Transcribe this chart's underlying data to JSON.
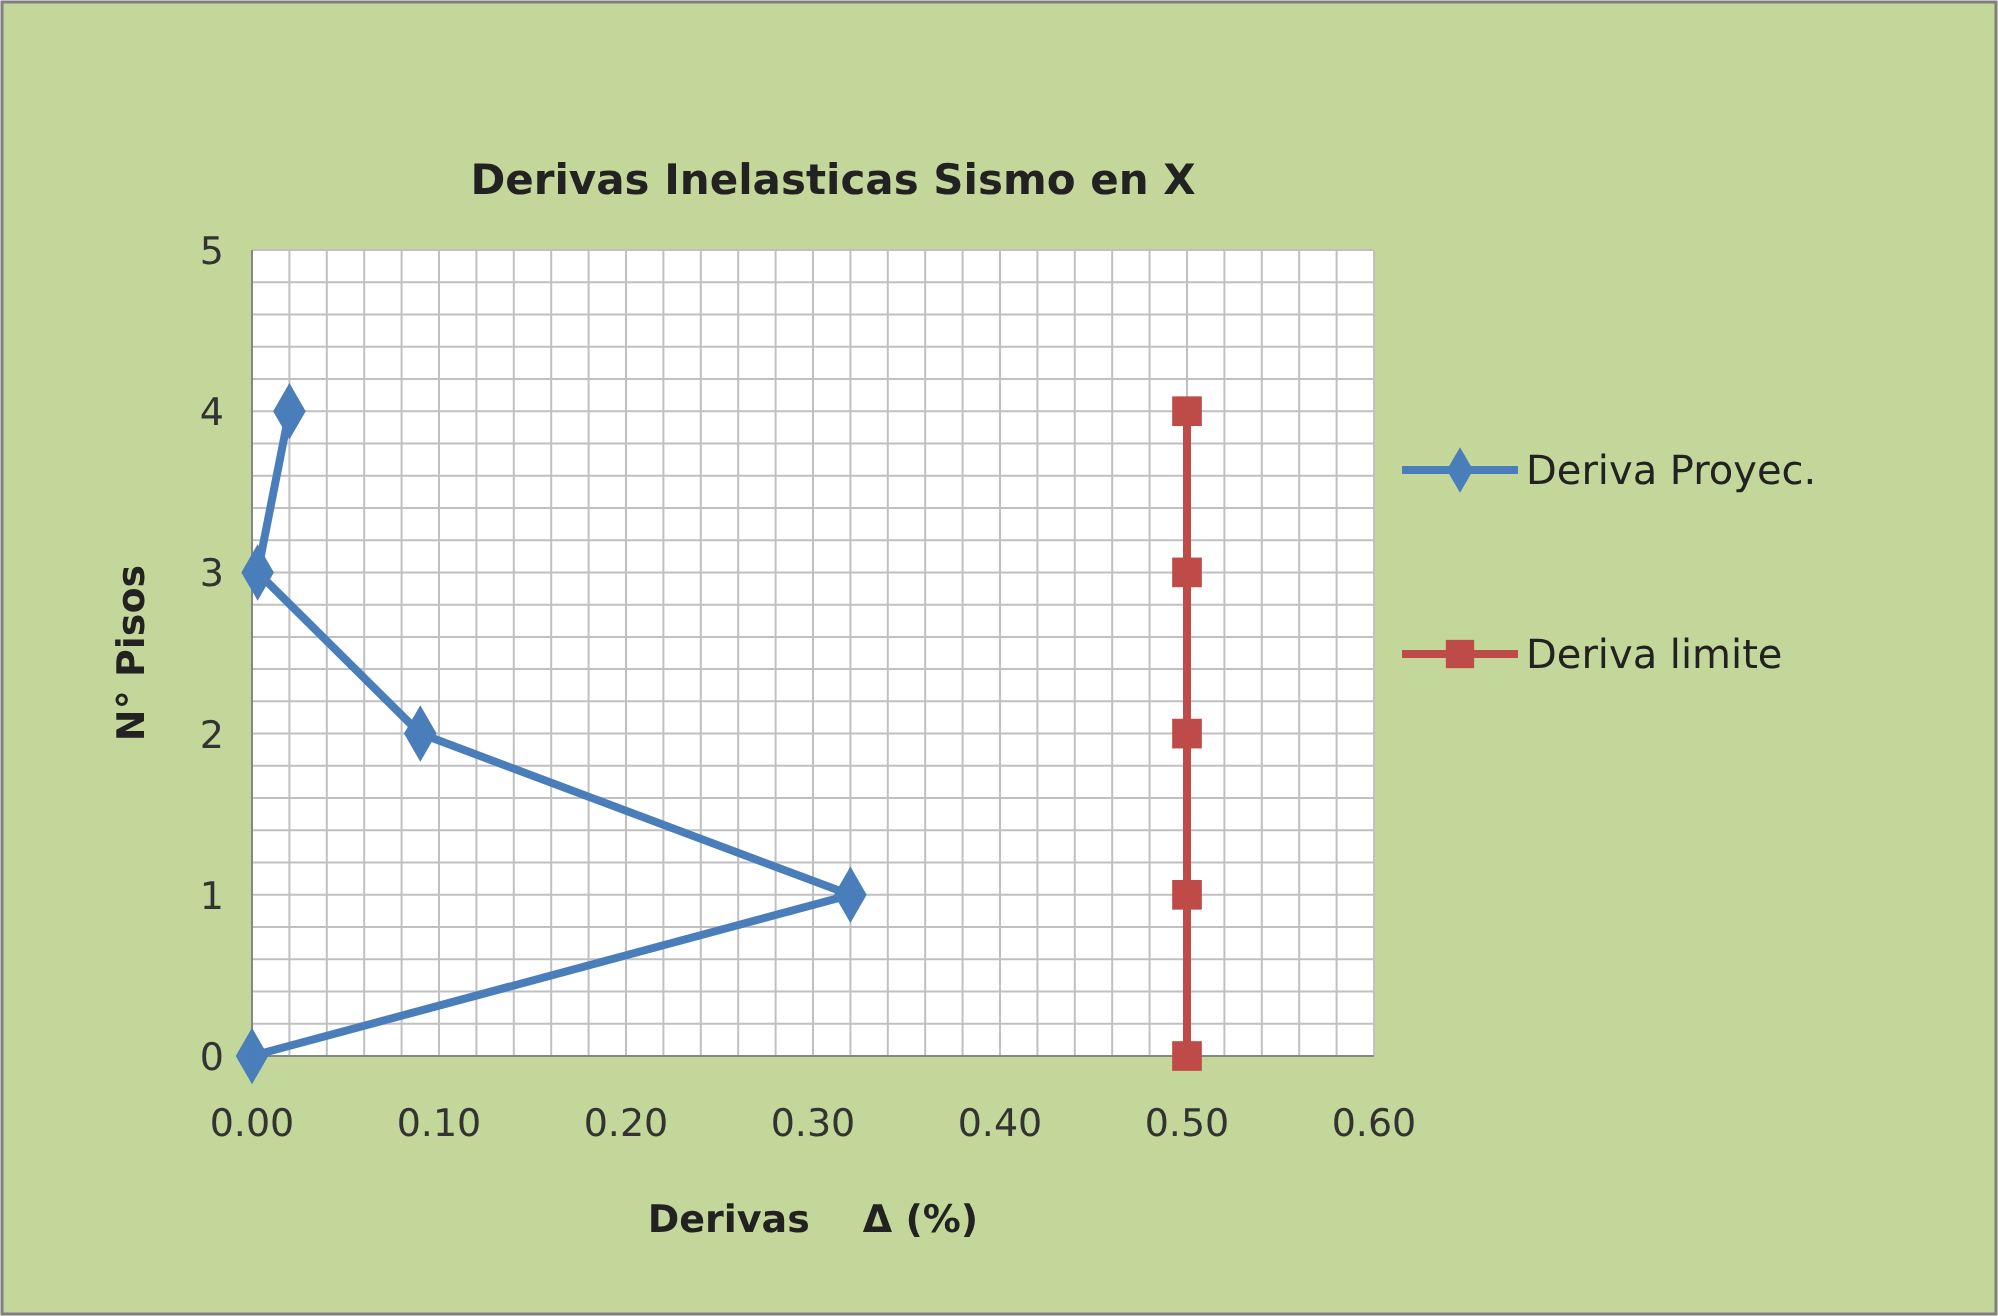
{
  "chart_data": {
    "type": "line",
    "title": "Derivas Inelasticas Sismo en X",
    "xlabel": "Derivas    Δ (%)",
    "ylabel": "N° Pisos",
    "xlim": [
      0,
      0.6
    ],
    "ylim": [
      0,
      5
    ],
    "xticks": [
      {
        "value": 0,
        "label": "0.00"
      },
      {
        "value": 0.02,
        "label": null
      },
      {
        "value": 0.04,
        "label": null
      },
      {
        "value": 0.06,
        "label": null
      },
      {
        "value": 0.08,
        "label": null
      },
      {
        "value": 0.1,
        "label": "0.10"
      },
      {
        "value": 0.12,
        "label": null
      },
      {
        "value": 0.14,
        "label": null
      },
      {
        "value": 0.16,
        "label": null
      },
      {
        "value": 0.18,
        "label": null
      },
      {
        "value": 0.2,
        "label": "0.20"
      },
      {
        "value": 0.22,
        "label": null
      },
      {
        "value": 0.24,
        "label": null
      },
      {
        "value": 0.26,
        "label": null
      },
      {
        "value": 0.28,
        "label": null
      },
      {
        "value": 0.3,
        "label": "0.30"
      },
      {
        "value": 0.32,
        "label": null
      },
      {
        "value": 0.34,
        "label": null
      },
      {
        "value": 0.36,
        "label": null
      },
      {
        "value": 0.38,
        "label": null
      },
      {
        "value": 0.4,
        "label": "0.40"
      },
      {
        "value": 0.42,
        "label": null
      },
      {
        "value": 0.44,
        "label": null
      },
      {
        "value": 0.46,
        "label": null
      },
      {
        "value": 0.48,
        "label": null
      },
      {
        "value": 0.5,
        "label": "0.50"
      },
      {
        "value": 0.52,
        "label": null
      },
      {
        "value": 0.54,
        "label": null
      },
      {
        "value": 0.56,
        "label": null
      },
      {
        "value": 0.58,
        "label": null
      },
      {
        "value": 0.6,
        "label": "0.60"
      }
    ],
    "yticks": [
      0,
      {
        "value": 0.2,
        "label": null
      },
      {
        "value": 0.4,
        "label": null
      },
      {
        "value": 0.6,
        "label": null
      },
      {
        "value": 0.8,
        "label": null
      },
      1,
      {
        "value": 1.2,
        "label": null
      },
      {
        "value": 1.4,
        "label": null
      },
      {
        "value": 1.6,
        "label": null
      },
      {
        "value": 1.8,
        "label": null
      },
      2,
      {
        "value": 2.2,
        "label": null
      },
      {
        "value": 2.4,
        "label": null
      },
      {
        "value": 2.6,
        "label": null
      },
      {
        "value": 2.8,
        "label": null
      },
      3,
      {
        "value": 3.2,
        "label": null
      },
      {
        "value": 3.4,
        "label": null
      },
      {
        "value": 3.6,
        "label": null
      },
      {
        "value": 3.8,
        "label": null
      },
      4,
      {
        "value": 4.2,
        "label": null
      },
      {
        "value": 4.4,
        "label": null
      },
      {
        "value": 4.6,
        "label": null
      },
      {
        "value": 4.8,
        "label": null
      },
      5
    ],
    "grid": true,
    "legend": "right",
    "series": [
      {
        "name": "Deriva Proyec.",
        "color": "#4a7ebb",
        "marker": "diamond",
        "x": [
          0,
          0.32,
          0.09,
          0.003,
          0.02
        ],
        "values": [
          0,
          1,
          2,
          3,
          4
        ]
      },
      {
        "name": "Deriva limite",
        "color": "#be4b48",
        "marker": "square",
        "x": [
          0.5,
          0.5,
          0.5,
          0.5,
          0.5
        ],
        "values": [
          0,
          1,
          2,
          3,
          4
        ]
      }
    ]
  }
}
